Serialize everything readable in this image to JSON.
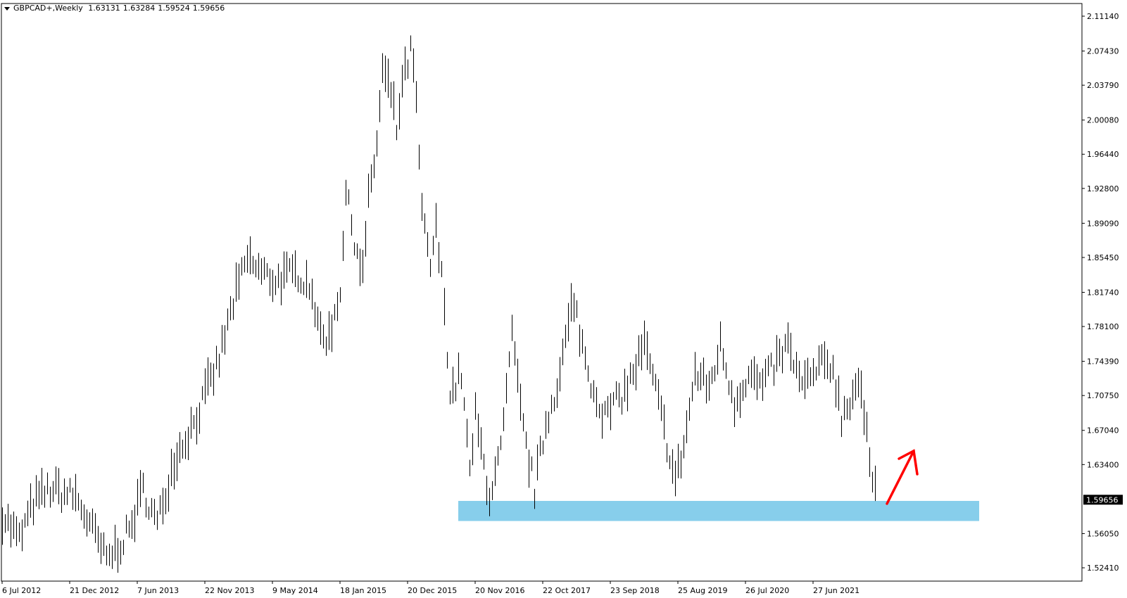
{
  "header": {
    "symbol": "GBPCAD+,Weekly",
    "open": "1.63131",
    "high": "1.63284",
    "low": "1.59524",
    "close": "1.59656"
  },
  "chart_data": {
    "type": "bar",
    "style": "OHLC weekly bars",
    "colors": {
      "bars": "#000000",
      "zone": "#87ceeb",
      "arrow": "#ff0000",
      "price_label_bg": "#000000"
    },
    "ylim": [
      1.5241,
      2.1114
    ],
    "y_ticks": [
      "2.11140",
      "2.07430",
      "2.03790",
      "2.00080",
      "1.96440",
      "1.92800",
      "1.89090",
      "1.85450",
      "1.81740",
      "1.78100",
      "1.74390",
      "1.70750",
      "1.67040",
      "1.63400",
      "1.56050",
      "1.52410"
    ],
    "current_price": "1.59656",
    "x_ticks": [
      "6 Jul 2012",
      "21 Dec 2012",
      "7 Jun 2013",
      "22 Nov 2013",
      "9 May 2014",
      "18 Jan 2015",
      "20 Dec 2015",
      "20 Nov 2016",
      "22 Oct 2017",
      "23 Sep 2018",
      "25 Aug 2019",
      "26 Jul 2020",
      "27 Jun 2021"
    ],
    "price_path": [
      [
        0,
        1.581
      ],
      [
        6,
        1.554
      ],
      [
        11,
        1.593
      ],
      [
        17,
        1.608
      ],
      [
        26,
        1.6
      ],
      [
        31,
        1.57
      ],
      [
        37,
        1.532
      ],
      [
        45,
        1.562
      ],
      [
        50,
        1.608
      ],
      [
        55,
        1.57
      ],
      [
        61,
        1.639
      ],
      [
        69,
        1.685
      ],
      [
        77,
        1.746
      ],
      [
        82,
        1.807
      ],
      [
        87,
        1.853
      ],
      [
        92,
        1.838
      ],
      [
        97,
        1.83
      ],
      [
        105,
        1.838
      ],
      [
        110,
        1.823
      ],
      [
        112,
        1.777
      ],
      [
        116,
        1.769
      ],
      [
        120,
        1.823
      ],
      [
        122,
        1.922
      ],
      [
        125,
        1.876
      ],
      [
        128,
        1.838
      ],
      [
        130,
        1.914
      ],
      [
        133,
        1.976
      ],
      [
        135,
        2.052
      ],
      [
        138,
        2.029
      ],
      [
        140,
        1.991
      ],
      [
        142,
        2.037
      ],
      [
        145,
        2.075
      ],
      [
        147,
        2.022
      ],
      [
        149,
        1.899
      ],
      [
        152,
        1.846
      ],
      [
        154,
        1.884
      ],
      [
        157,
        1.807
      ],
      [
        159,
        1.708
      ],
      [
        163,
        1.731
      ],
      [
        166,
        1.624
      ],
      [
        168,
        1.685
      ],
      [
        173,
        1.601
      ],
      [
        177,
        1.647
      ],
      [
        181,
        1.769
      ],
      [
        185,
        1.67
      ],
      [
        189,
        1.608
      ],
      [
        193,
        1.677
      ],
      [
        198,
        1.731
      ],
      [
        202,
        1.8
      ],
      [
        204,
        1.792
      ],
      [
        208,
        1.731
      ],
      [
        214,
        1.685
      ],
      [
        222,
        1.716
      ],
      [
        228,
        1.761
      ],
      [
        233,
        1.7
      ],
      [
        239,
        1.616
      ],
      [
        242,
        1.654
      ],
      [
        246,
        1.731
      ],
      [
        251,
        1.716
      ],
      [
        255,
        1.761
      ],
      [
        260,
        1.7
      ],
      [
        265,
        1.731
      ],
      [
        270,
        1.716
      ],
      [
        274,
        1.739
      ],
      [
        279,
        1.761
      ],
      [
        284,
        1.716
      ],
      [
        291,
        1.739
      ],
      [
        295,
        1.739
      ],
      [
        298,
        1.685
      ],
      [
        304,
        1.723
      ],
      [
        306,
        1.685
      ],
      [
        308,
        1.639
      ],
      [
        310,
        1.6139
      ]
    ],
    "support_zone": {
      "upper": 1.5953,
      "lower": 1.5739,
      "from_week": 162,
      "to_week": 347
    },
    "arrow": {
      "direction": "up"
    }
  }
}
